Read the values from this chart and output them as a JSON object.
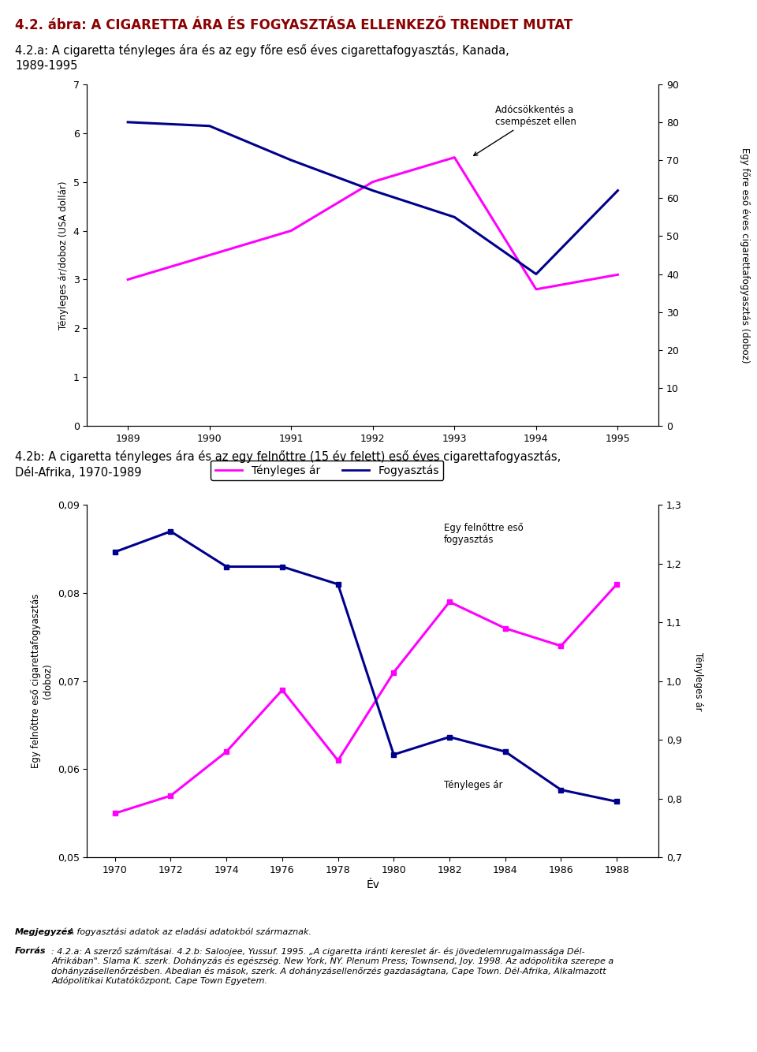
{
  "main_title": "4.2. ábra: A CIGARETTA ÁRA ÉS FOGYASZTÁSA ELLENKEZŐ TRENDET MUTAT",
  "subtitle_a": "4.2.a: A cigaretta tényleges ára és az egy főre eső éves cigarettafogyasztás, Kanada,",
  "subtitle_a2": "1989-1995",
  "subtitle_b": "4.2b: A cigaretta tényleges ára és az egy felnőttre (15 év felett) eső éves cigarettafogyasztás,",
  "subtitle_b2": "Dél-Afrika, 1970-1989",
  "chart_a": {
    "years": [
      1989,
      1990,
      1991,
      1992,
      1993,
      1994,
      1995
    ],
    "price": [
      3.0,
      3.5,
      4.0,
      5.0,
      5.5,
      2.8,
      3.1
    ],
    "consumption": [
      80,
      79,
      70,
      62,
      55,
      40,
      62
    ],
    "price_color": "#FF00FF",
    "consumption_color": "#00008B",
    "ylabel_left": "Tényleges ár/doboz (USA dollár)",
    "ylabel_right": "Egy főre eső éves cigarettafogyasztás (doboz)",
    "ylim_left": [
      0,
      7
    ],
    "ylim_right": [
      0,
      90
    ],
    "yticks_left": [
      0,
      1,
      2,
      3,
      4,
      5,
      6,
      7
    ],
    "yticks_right": [
      0,
      10,
      20,
      30,
      40,
      50,
      60,
      70,
      80,
      90
    ],
    "annotation_text": "Adócsökkentés a\ncsempészet ellen",
    "legend_price": "Tényleges ár",
    "legend_consumption": "Fogyasztás"
  },
  "chart_b": {
    "years": [
      1970,
      1972,
      1974,
      1976,
      1978,
      1980,
      1982,
      1984,
      1986,
      1988
    ],
    "consumption": [
      0.055,
      0.057,
      0.062,
      0.069,
      0.061,
      0.071,
      0.079,
      0.076,
      0.074,
      0.081
    ],
    "price": [
      1.22,
      1.255,
      1.195,
      1.195,
      1.165,
      0.875,
      0.905,
      0.88,
      0.815,
      0.795
    ],
    "consumption_color": "#FF00FF",
    "price_color": "#00008B",
    "ylabel_left": "Egy felnőttre eső cigarettafogyasztás\n(doboz)",
    "ylabel_right": "Tényleges ár",
    "ylim_left": [
      0.05,
      0.09
    ],
    "ylim_right": [
      0.7,
      1.3
    ],
    "yticks_left": [
      0.05,
      0.06,
      0.07,
      0.08,
      0.09
    ],
    "yticks_right": [
      0.7,
      0.8,
      0.9,
      1.0,
      1.1,
      1.2,
      1.3
    ],
    "xlabel": "Év"
  },
  "footnote_bold": "Megjegyzés",
  "footnote_rest": ": A fogyasztási adatok az eladási adatokból származnak.",
  "footnote_bold2": "Forrás",
  "footnote_rest2": ": 4.2.a: A szerző számításai. 4.2.b: Saloojee, Yussuf. 1995. „A cigaretta iránti kereslet ár- és jövedelemrugalmassága Dél-\nAfrikában\". Slama K. szerk. Dohányzás és egészség. New York, NY. Plenum Press; Townsend, Joy. 1998. Az adópolitika szerepe a\ndohányzásellenőrzésben. Abedian és mások, szerk. A dohányzásellenőrzés gazdaságtana, Cape Town. Dél-Afrika, Alkalmazott\nAdópolitikai Kutatóközpont, Cape Town Egyetem.",
  "title_color": "#8B0000",
  "bg_color": "#FFFFFF"
}
